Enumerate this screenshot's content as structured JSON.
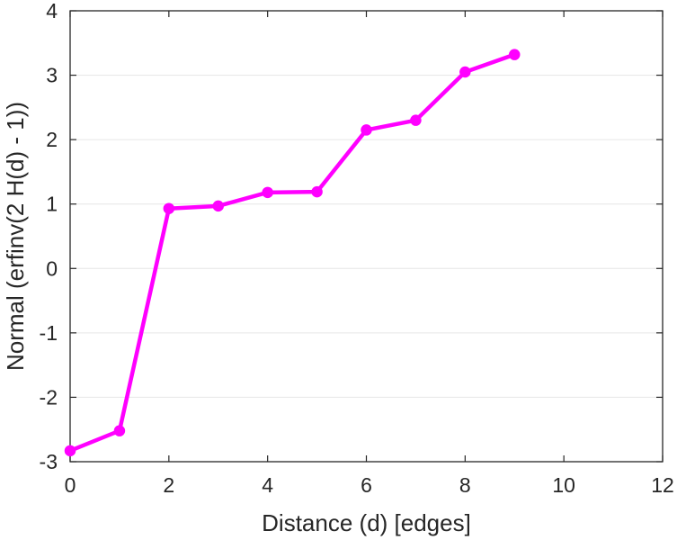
{
  "chart_data": {
    "type": "line",
    "title": "",
    "xlabel": "Distance (d) [edges]",
    "ylabel": "Normal (erfinv(2 H(d) - 1))",
    "xlim": [
      0,
      12
    ],
    "ylim": [
      -3,
      4
    ],
    "x_ticks": [
      0,
      2,
      4,
      6,
      8,
      10,
      12
    ],
    "y_ticks": [
      -3,
      -2,
      -1,
      0,
      1,
      2,
      3,
      4
    ],
    "grid": true,
    "legend": "none",
    "series": [
      {
        "color": "#ff00ff",
        "marker": "circle",
        "x": [
          0,
          1,
          2,
          3,
          4,
          5,
          6,
          7,
          8,
          9
        ],
        "y": [
          -2.83,
          -2.52,
          0.93,
          0.97,
          1.18,
          1.19,
          2.15,
          2.3,
          3.05,
          3.32
        ]
      }
    ]
  }
}
